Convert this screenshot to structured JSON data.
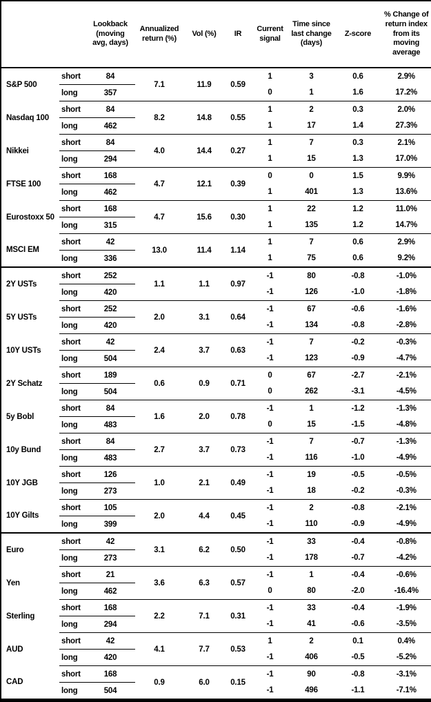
{
  "header": {
    "columns": [
      "",
      "",
      "Lookback\n(moving\navg, days)",
      "Annualized\nreturn (%)",
      "Vol (%)",
      "IR",
      "Current\nsignal",
      "Time since\nlast change\n(days)",
      "Z-score",
      "% Change of\nreturn index\nfrom its\nmoving\naverage"
    ]
  },
  "chart_data": {
    "type": "table",
    "columns": [
      "",
      "",
      "Lookback (moving avg, days)",
      "Annualized return (%)",
      "Vol (%)",
      "IR",
      "Current signal",
      "Time since last change (days)",
      "Z-score",
      "% Change of return index from its moving average"
    ],
    "sections": [
      {
        "assets": [
          {
            "name": "S&P 500",
            "annualized_return": "7.1",
            "vol": "11.9",
            "ir": "0.59",
            "rows": [
              {
                "position": "short",
                "lookback": "84",
                "signal": "1",
                "time_since": "3",
                "z_score": "0.6",
                "pct_change": "2.9%"
              },
              {
                "position": "long",
                "lookback": "357",
                "signal": "0",
                "time_since": "1",
                "z_score": "1.6",
                "pct_change": "17.2%"
              }
            ]
          },
          {
            "name": "Nasdaq 100",
            "annualized_return": "8.2",
            "vol": "14.8",
            "ir": "0.55",
            "rows": [
              {
                "position": "short",
                "lookback": "84",
                "signal": "1",
                "time_since": "2",
                "z_score": "0.3",
                "pct_change": "2.0%"
              },
              {
                "position": "long",
                "lookback": "462",
                "signal": "1",
                "time_since": "17",
                "z_score": "1.4",
                "pct_change": "27.3%"
              }
            ]
          },
          {
            "name": "Nikkei",
            "annualized_return": "4.0",
            "vol": "14.4",
            "ir": "0.27",
            "rows": [
              {
                "position": "short",
                "lookback": "84",
                "signal": "1",
                "time_since": "7",
                "z_score": "0.3",
                "pct_change": "2.1%"
              },
              {
                "position": "long",
                "lookback": "294",
                "signal": "1",
                "time_since": "15",
                "z_score": "1.3",
                "pct_change": "17.0%"
              }
            ]
          },
          {
            "name": "FTSE 100",
            "annualized_return": "4.7",
            "vol": "12.1",
            "ir": "0.39",
            "rows": [
              {
                "position": "short",
                "lookback": "168",
                "signal": "0",
                "time_since": "0",
                "z_score": "1.5",
                "pct_change": "9.9%"
              },
              {
                "position": "long",
                "lookback": "462",
                "signal": "1",
                "time_since": "401",
                "z_score": "1.3",
                "pct_change": "13.6%"
              }
            ]
          },
          {
            "name": "Eurostoxx 50",
            "annualized_return": "4.7",
            "vol": "15.6",
            "ir": "0.30",
            "rows": [
              {
                "position": "short",
                "lookback": "168",
                "signal": "1",
                "time_since": "22",
                "z_score": "1.2",
                "pct_change": "11.0%"
              },
              {
                "position": "long",
                "lookback": "315",
                "signal": "1",
                "time_since": "135",
                "z_score": "1.2",
                "pct_change": "14.7%"
              }
            ]
          },
          {
            "name": "MSCI EM",
            "annualized_return": "13.0",
            "vol": "11.4",
            "ir": "1.14",
            "rows": [
              {
                "position": "short",
                "lookback": "42",
                "signal": "1",
                "time_since": "7",
                "z_score": "0.6",
                "pct_change": "2.9%"
              },
              {
                "position": "long",
                "lookback": "336",
                "signal": "1",
                "time_since": "75",
                "z_score": "0.6",
                "pct_change": "9.2%"
              }
            ]
          }
        ]
      },
      {
        "assets": [
          {
            "name": "2Y USTs",
            "annualized_return": "1.1",
            "vol": "1.1",
            "ir": "0.97",
            "rows": [
              {
                "position": "short",
                "lookback": "252",
                "signal": "-1",
                "time_since": "80",
                "z_score": "-0.8",
                "pct_change": "-1.0%"
              },
              {
                "position": "long",
                "lookback": "420",
                "signal": "-1",
                "time_since": "126",
                "z_score": "-1.0",
                "pct_change": "-1.8%"
              }
            ]
          },
          {
            "name": "5Y USTs",
            "annualized_return": "2.0",
            "vol": "3.1",
            "ir": "0.64",
            "rows": [
              {
                "position": "short",
                "lookback": "252",
                "signal": "-1",
                "time_since": "67",
                "z_score": "-0.6",
                "pct_change": "-1.6%"
              },
              {
                "position": "long",
                "lookback": "420",
                "signal": "-1",
                "time_since": "134",
                "z_score": "-0.8",
                "pct_change": "-2.8%"
              }
            ]
          },
          {
            "name": "10Y USTs",
            "annualized_return": "2.4",
            "vol": "3.7",
            "ir": "0.63",
            "rows": [
              {
                "position": "short",
                "lookback": "42",
                "signal": "-1",
                "time_since": "7",
                "z_score": "-0.2",
                "pct_change": "-0.3%"
              },
              {
                "position": "long",
                "lookback": "504",
                "signal": "-1",
                "time_since": "123",
                "z_score": "-0.9",
                "pct_change": "-4.7%"
              }
            ]
          },
          {
            "name": "2Y Schatz",
            "annualized_return": "0.6",
            "vol": "0.9",
            "ir": "0.71",
            "rows": [
              {
                "position": "short",
                "lookback": "189",
                "signal": "0",
                "time_since": "67",
                "z_score": "-2.7",
                "pct_change": "-2.1%"
              },
              {
                "position": "long",
                "lookback": "504",
                "signal": "0",
                "time_since": "262",
                "z_score": "-3.1",
                "pct_change": "-4.5%"
              }
            ]
          },
          {
            "name": "5y Bobl",
            "annualized_return": "1.6",
            "vol": "2.0",
            "ir": "0.78",
            "rows": [
              {
                "position": "short",
                "lookback": "84",
                "signal": "-1",
                "time_since": "1",
                "z_score": "-1.2",
                "pct_change": "-1.3%"
              },
              {
                "position": "long",
                "lookback": "483",
                "signal": "0",
                "time_since": "15",
                "z_score": "-1.5",
                "pct_change": "-4.8%"
              }
            ]
          },
          {
            "name": "10y Bund",
            "annualized_return": "2.7",
            "vol": "3.7",
            "ir": "0.73",
            "rows": [
              {
                "position": "short",
                "lookback": "84",
                "signal": "-1",
                "time_since": "7",
                "z_score": "-0.7",
                "pct_change": "-1.3%"
              },
              {
                "position": "long",
                "lookback": "483",
                "signal": "-1",
                "time_since": "116",
                "z_score": "-1.0",
                "pct_change": "-4.9%"
              }
            ]
          },
          {
            "name": "10Y JGB",
            "annualized_return": "1.0",
            "vol": "2.1",
            "ir": "0.49",
            "rows": [
              {
                "position": "short",
                "lookback": "126",
                "signal": "-1",
                "time_since": "19",
                "z_score": "-0.5",
                "pct_change": "-0.5%"
              },
              {
                "position": "long",
                "lookback": "273",
                "signal": "-1",
                "time_since": "18",
                "z_score": "-0.2",
                "pct_change": "-0.3%"
              }
            ]
          },
          {
            "name": "10Y Gilts",
            "annualized_return": "2.0",
            "vol": "4.4",
            "ir": "0.45",
            "rows": [
              {
                "position": "short",
                "lookback": "105",
                "signal": "-1",
                "time_since": "2",
                "z_score": "-0.8",
                "pct_change": "-2.1%"
              },
              {
                "position": "long",
                "lookback": "399",
                "signal": "-1",
                "time_since": "110",
                "z_score": "-0.9",
                "pct_change": "-4.9%"
              }
            ]
          }
        ]
      },
      {
        "assets": [
          {
            "name": "Euro",
            "annualized_return": "3.1",
            "vol": "6.2",
            "ir": "0.50",
            "rows": [
              {
                "position": "short",
                "lookback": "42",
                "signal": "-1",
                "time_since": "33",
                "z_score": "-0.4",
                "pct_change": "-0.8%"
              },
              {
                "position": "long",
                "lookback": "273",
                "signal": "-1",
                "time_since": "178",
                "z_score": "-0.7",
                "pct_change": "-4.2%"
              }
            ]
          },
          {
            "name": "Yen",
            "annualized_return": "3.6",
            "vol": "6.3",
            "ir": "0.57",
            "rows": [
              {
                "position": "short",
                "lookback": "21",
                "signal": "-1",
                "time_since": "1",
                "z_score": "-0.4",
                "pct_change": "-0.6%"
              },
              {
                "position": "long",
                "lookback": "462",
                "signal": "0",
                "time_since": "80",
                "z_score": "-2.0",
                "pct_change": "-16.4%"
              }
            ]
          },
          {
            "name": "Sterling",
            "annualized_return": "2.2",
            "vol": "7.1",
            "ir": "0.31",
            "rows": [
              {
                "position": "short",
                "lookback": "168",
                "signal": "-1",
                "time_since": "33",
                "z_score": "-0.4",
                "pct_change": "-1.9%"
              },
              {
                "position": "long",
                "lookback": "294",
                "signal": "-1",
                "time_since": "41",
                "z_score": "-0.6",
                "pct_change": "-3.5%"
              }
            ]
          },
          {
            "name": "AUD",
            "annualized_return": "4.1",
            "vol": "7.7",
            "ir": "0.53",
            "rows": [
              {
                "position": "short",
                "lookback": "42",
                "signal": "1",
                "time_since": "2",
                "z_score": "0.1",
                "pct_change": "0.4%"
              },
              {
                "position": "long",
                "lookback": "420",
                "signal": "-1",
                "time_since": "406",
                "z_score": "-0.5",
                "pct_change": "-5.2%"
              }
            ]
          },
          {
            "name": "CAD",
            "annualized_return": "0.9",
            "vol": "6.0",
            "ir": "0.15",
            "rows": [
              {
                "position": "short",
                "lookback": "168",
                "signal": "-1",
                "time_since": "90",
                "z_score": "-0.8",
                "pct_change": "-3.1%"
              },
              {
                "position": "long",
                "lookback": "504",
                "signal": "-1",
                "time_since": "496",
                "z_score": "-1.1",
                "pct_change": "-7.1%"
              }
            ]
          }
        ]
      }
    ]
  }
}
